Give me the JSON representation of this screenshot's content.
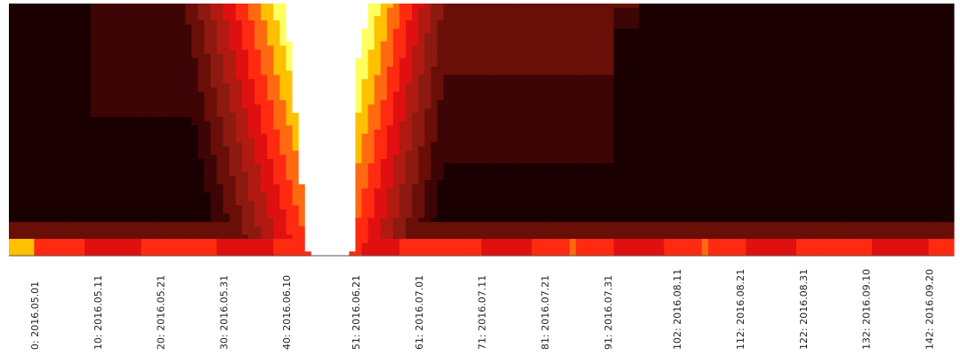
{
  "chart_data": {
    "type": "heatmap",
    "title": "",
    "xlabel": "",
    "ylabel": "",
    "x_tick_labels": [
      "0: 2016.05.01",
      "10: 2016.05.11",
      "20: 2016.05.21",
      "30: 2016.05.31",
      "40: 2016.06.10",
      "51: 2016.06.21",
      "61: 2016.07.01",
      "71: 2016.07.11",
      "81: 2016.07.21",
      "91: 2016.07.31",
      "102: 2016.08.11",
      "112: 2016.08.21",
      "122: 2016.08.31",
      "132: 2016.09.10",
      "142: 2016.09.20"
    ],
    "x_index_range": [
      0,
      150
    ],
    "colormap": [
      "#1a0000",
      "#3d0505",
      "#6a0e08",
      "#8c1a10",
      "#b01a10",
      "#e01010",
      "#ff2a10",
      "#ff6a10",
      "#ffc000",
      "#ffff60",
      "#ffffff"
    ],
    "value_range": [
      0,
      1
    ],
    "grid": false,
    "legend": "none",
    "description_values": {
      "peak_region_index": [
        46,
        57
      ],
      "peak_value": 1.0,
      "baseline_row_value": 0.65
    }
  }
}
